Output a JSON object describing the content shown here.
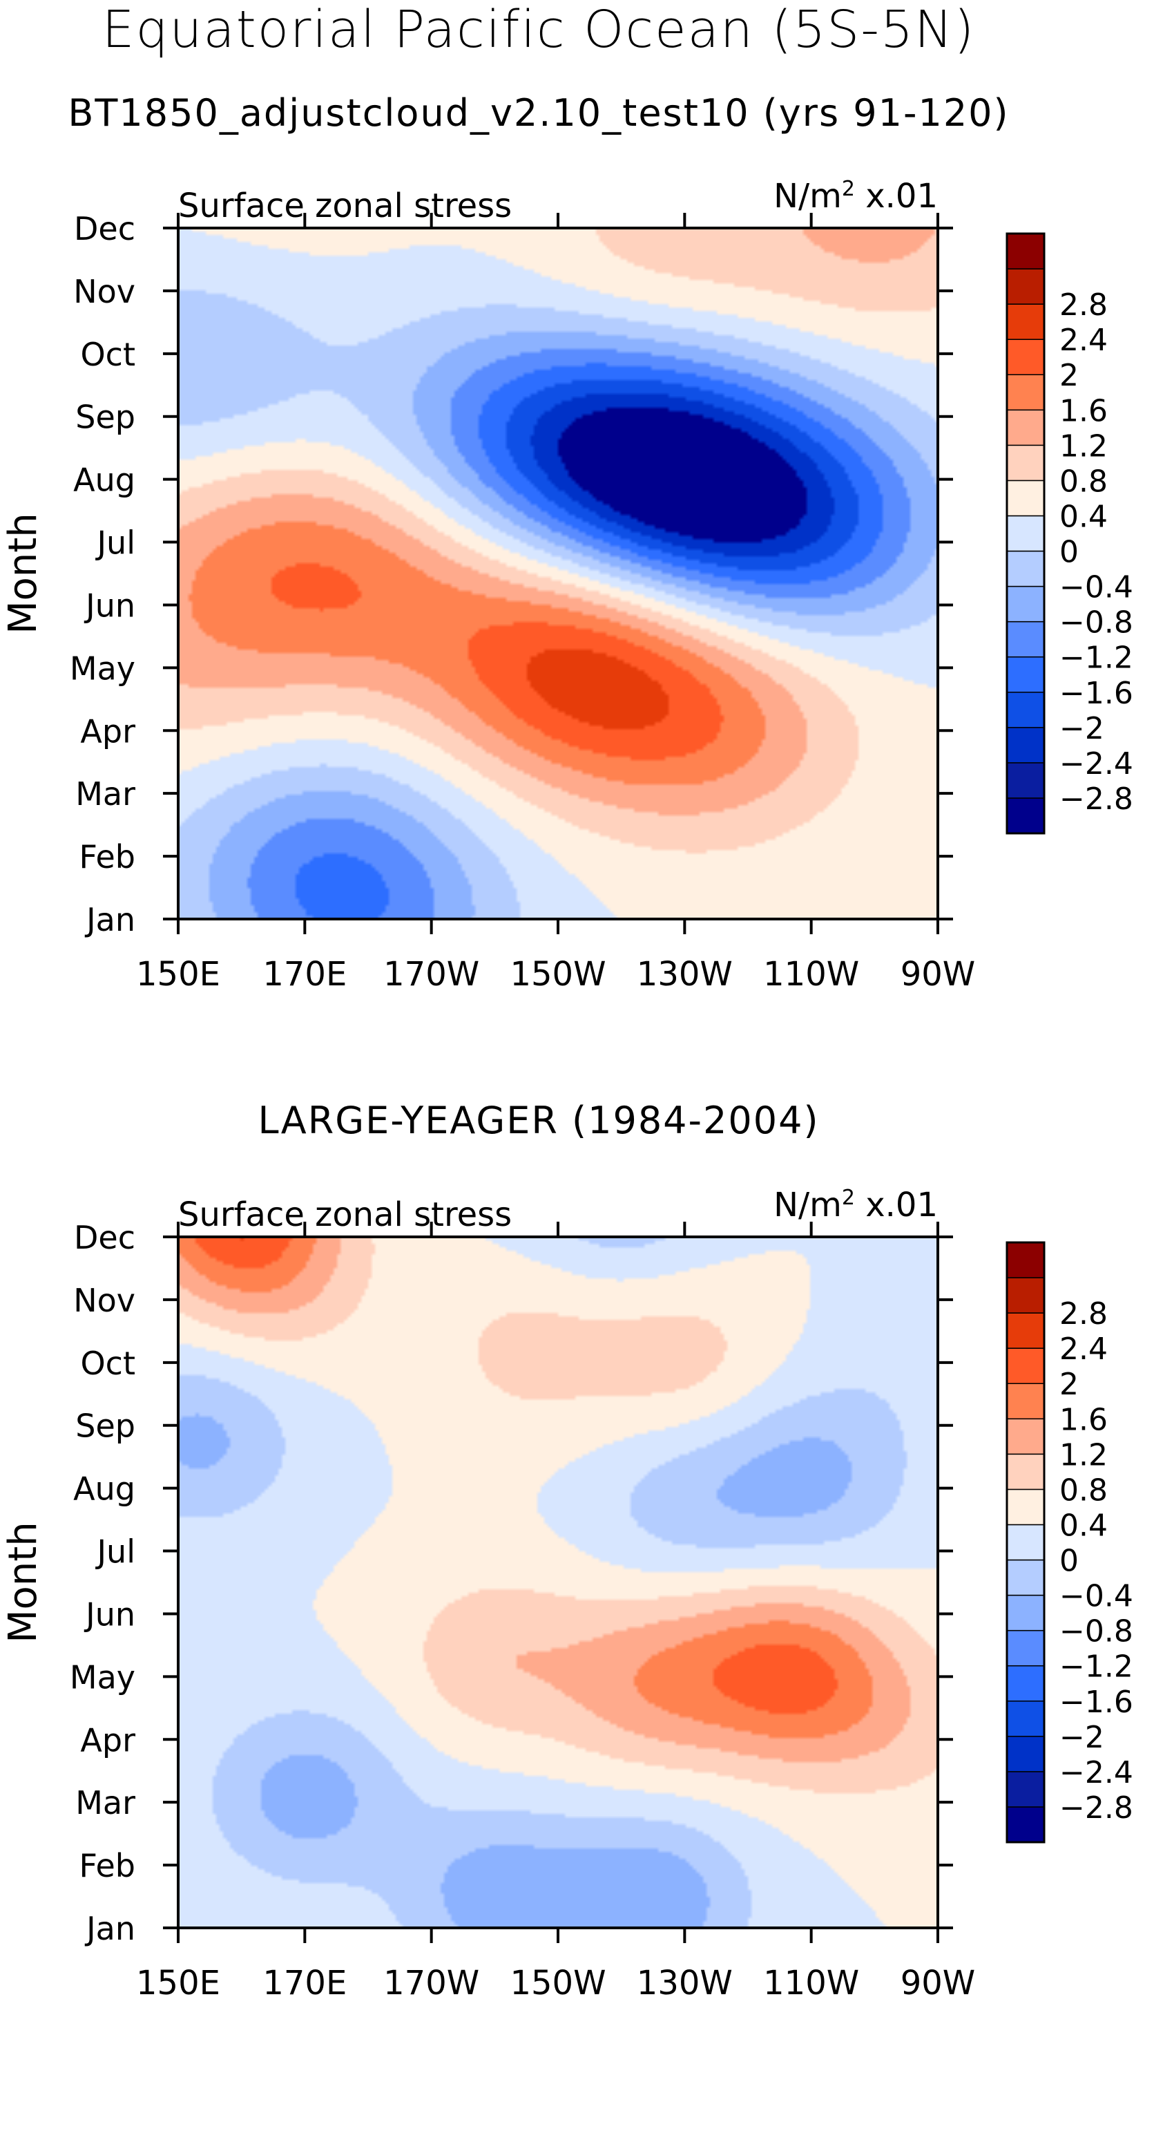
{
  "main_title": "Equatorial Pacific Ocean (5S-5N)",
  "colors": [
    "#00008c",
    "#0a1ea0",
    "#0032c8",
    "#0f50e6",
    "#2d6eff",
    "#5a8cff",
    "#8cb2ff",
    "#b4cdff",
    "#d7e6ff",
    "#fff0e1",
    "#ffd2be",
    "#ffaa8c",
    "#ff8250",
    "#ff5a28",
    "#e63c0a",
    "#b91e00",
    "#8c0000"
  ],
  "chart_data": [
    {
      "type": "heatmap",
      "title": "BT1850_adjustcloud_v2.10_test10 (yrs 91-120)",
      "left_string": "Surface zonal stress",
      "right_string_base": "N/m",
      "right_string_exp": "2",
      "right_string_scale": " x.01",
      "xlabel": "",
      "ylabel": "Month",
      "x_ticks": [
        "150E",
        "170E",
        "170W",
        "150W",
        "130W",
        "110W",
        "90W"
      ],
      "y_ticks": [
        "Jan",
        "Feb",
        "Mar",
        "Apr",
        "May",
        "Jun",
        "Jul",
        "Aug",
        "Sep",
        "Oct",
        "Nov",
        "Dec"
      ],
      "levels": [
        -2.8,
        -2.4,
        -2,
        -1.6,
        -1.2,
        -0.8,
        -0.4,
        0,
        0.4,
        0.8,
        1.2,
        1.6,
        2,
        2.4,
        2.8
      ],
      "level_labels": [
        "-2.8",
        "-2.4",
        "-2",
        "-1.6",
        "-1.2",
        "-0.8",
        "-0.4",
        "0",
        "0.4",
        "0.8",
        "1.2",
        "1.6",
        "2",
        "2.4",
        "2.8"
      ],
      "xlim_deg_east": [
        150,
        270
      ],
      "centers": [
        {
          "lon": 200,
          "month": 8.0,
          "value": -0.8
        },
        {
          "lon": 215,
          "month": 7.6,
          "value": -1.3
        },
        {
          "lon": 230,
          "month": 7.0,
          "value": -2.4
        },
        {
          "lon": 250,
          "month": 6.3,
          "value": -1.7
        },
        {
          "lon": 160,
          "month": 5.9,
          "value": 0.8
        },
        {
          "lon": 180,
          "month": 5.3,
          "value": 1.1
        },
        {
          "lon": 212,
          "month": 4.0,
          "value": 1.9
        },
        {
          "lon": 235,
          "month": 3.1,
          "value": 1.2
        },
        {
          "lon": 150,
          "month": 4.0,
          "value": 0.6
        },
        {
          "lon": 170,
          "month": 1.0,
          "value": -0.9
        },
        {
          "lon": 180,
          "month": 0.0,
          "value": -1.1
        },
        {
          "lon": 225,
          "month": 10.5,
          "value": 0.6
        },
        {
          "lon": 262,
          "month": 11.2,
          "value": 0.9
        },
        {
          "lon": 164,
          "month": 12.0,
          "value": 0.3
        },
        {
          "lon": 152,
          "month": 8.7,
          "value": -0.8
        }
      ],
      "sigma_lon": 16,
      "sigma_month": 1.3
    },
    {
      "type": "heatmap",
      "title": "LARGE-YEAGER (1984-2004)",
      "left_string": "Surface zonal stress",
      "right_string_base": "N/m",
      "right_string_exp": "2",
      "right_string_scale": " x.01",
      "xlabel": "",
      "ylabel": "Month",
      "x_ticks": [
        "150E",
        "170E",
        "170W",
        "150W",
        "130W",
        "110W",
        "90W"
      ],
      "y_ticks": [
        "Jan",
        "Feb",
        "Mar",
        "Apr",
        "May",
        "Jun",
        "Jul",
        "Aug",
        "Sep",
        "Oct",
        "Nov",
        "Dec"
      ],
      "levels": [
        -2.8,
        -2.4,
        -2,
        -1.6,
        -1.2,
        -0.8,
        -0.4,
        0,
        0.4,
        0.8,
        1.2,
        1.6,
        2,
        2.4,
        2.8
      ],
      "level_labels": [
        "-2.8",
        "-2.4",
        "-2",
        "-1.6",
        "-1.2",
        "-0.8",
        "-0.4",
        "0",
        "0.4",
        "0.8",
        "1.2",
        "1.6",
        "2",
        "2.4",
        "2.8"
      ],
      "xlim_deg_east": [
        150,
        270
      ],
      "centers": [
        {
          "lon": 158,
          "month": 11.6,
          "value": 1.8
        },
        {
          "lon": 165,
          "month": 10.4,
          "value": 0.7
        },
        {
          "lon": 205,
          "month": 9.2,
          "value": 0.5
        },
        {
          "lon": 230,
          "month": 9.0,
          "value": 0.6
        },
        {
          "lon": 200,
          "month": 4.3,
          "value": 0.7
        },
        {
          "lon": 225,
          "month": 3.9,
          "value": 1.0
        },
        {
          "lon": 245,
          "month": 4.1,
          "value": 1.3
        },
        {
          "lon": 255,
          "month": 3.7,
          "value": 0.6
        },
        {
          "lon": 170,
          "month": 2.1,
          "value": -1.0
        },
        {
          "lon": 200,
          "month": 0.5,
          "value": -1.0
        },
        {
          "lon": 225,
          "month": 0.4,
          "value": -1.1
        },
        {
          "lon": 250,
          "month": 7.2,
          "value": -0.9
        },
        {
          "lon": 230,
          "month": 6.8,
          "value": -0.6
        },
        {
          "lon": 153,
          "month": 7.8,
          "value": -0.9
        },
        {
          "lon": 220,
          "month": 11.9,
          "value": -0.9
        },
        {
          "lon": 265,
          "month": 9.0,
          "value": -0.2
        },
        {
          "lon": 268,
          "month": 3.0,
          "value": 0.3
        }
      ],
      "sigma_lon": 11,
      "sigma_month": 1.0
    }
  ]
}
